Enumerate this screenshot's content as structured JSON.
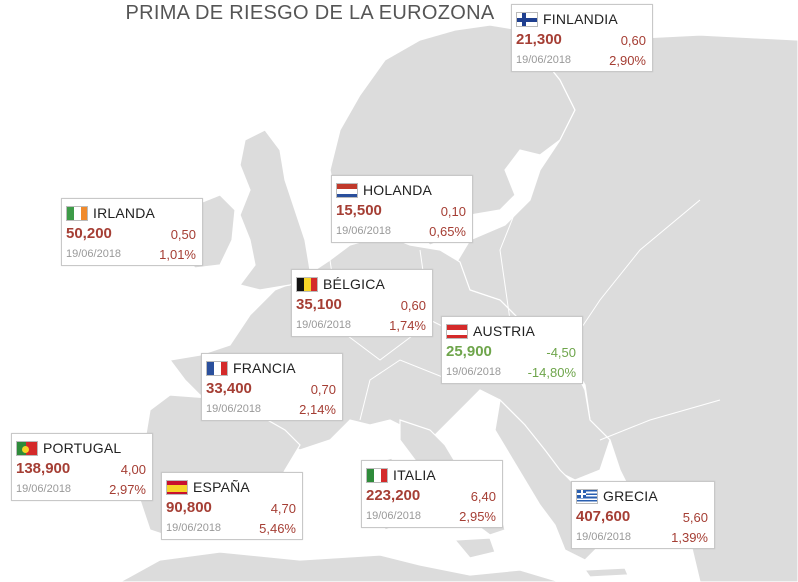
{
  "title": "PRIMA DE RIESGO DE LA EUROZONA",
  "colors": {
    "positive": "#a53e34",
    "negative": "#6ea54b",
    "land": "#dcdcdc",
    "sea": "#ffffff"
  },
  "countries": [
    {
      "key": "finlandia",
      "name": "FINLANDIA",
      "value": "21,300",
      "change": "0,60",
      "date": "19/06/2018",
      "pct": "2,90%",
      "flag": "finland-flag-icon"
    },
    {
      "key": "irlanda",
      "name": "IRLANDA",
      "value": "50,200",
      "change": "0,50",
      "date": "19/06/2018",
      "pct": "1,01%",
      "flag": "ireland-flag-icon"
    },
    {
      "key": "holanda",
      "name": "HOLANDA",
      "value": "15,500",
      "change": "0,10",
      "date": "19/06/2018",
      "pct": "0,65%",
      "flag": "netherlands-flag-icon"
    },
    {
      "key": "belgica",
      "name": "BÉLGICA",
      "value": "35,100",
      "change": "0,60",
      "date": "19/06/2018",
      "pct": "1,74%",
      "flag": "belgium-flag-icon"
    },
    {
      "key": "austria",
      "name": "AUSTRIA",
      "value": "25,900",
      "change": "-4,50",
      "date": "19/06/2018",
      "pct": "-14,80%",
      "flag": "austria-flag-icon"
    },
    {
      "key": "francia",
      "name": "FRANCIA",
      "value": "33,400",
      "change": "0,70",
      "date": "19/06/2018",
      "pct": "2,14%",
      "flag": "france-flag-icon"
    },
    {
      "key": "portugal",
      "name": "PORTUGAL",
      "value": "138,900",
      "change": "4,00",
      "date": "19/06/2018",
      "pct": "2,97%",
      "flag": "portugal-flag-icon"
    },
    {
      "key": "espana",
      "name": "ESPAÑA",
      "value": "90,800",
      "change": "4,70",
      "date": "19/06/2018",
      "pct": "5,46%",
      "flag": "spain-flag-icon"
    },
    {
      "key": "italia",
      "name": "ITALIA",
      "value": "223,200",
      "change": "6,40",
      "date": "19/06/2018",
      "pct": "2,95%",
      "flag": "italy-flag-icon"
    },
    {
      "key": "grecia",
      "name": "GRECIA",
      "value": "407,600",
      "change": "5,60",
      "date": "19/06/2018",
      "pct": "1,39%",
      "flag": "greece-flag-icon"
    }
  ]
}
